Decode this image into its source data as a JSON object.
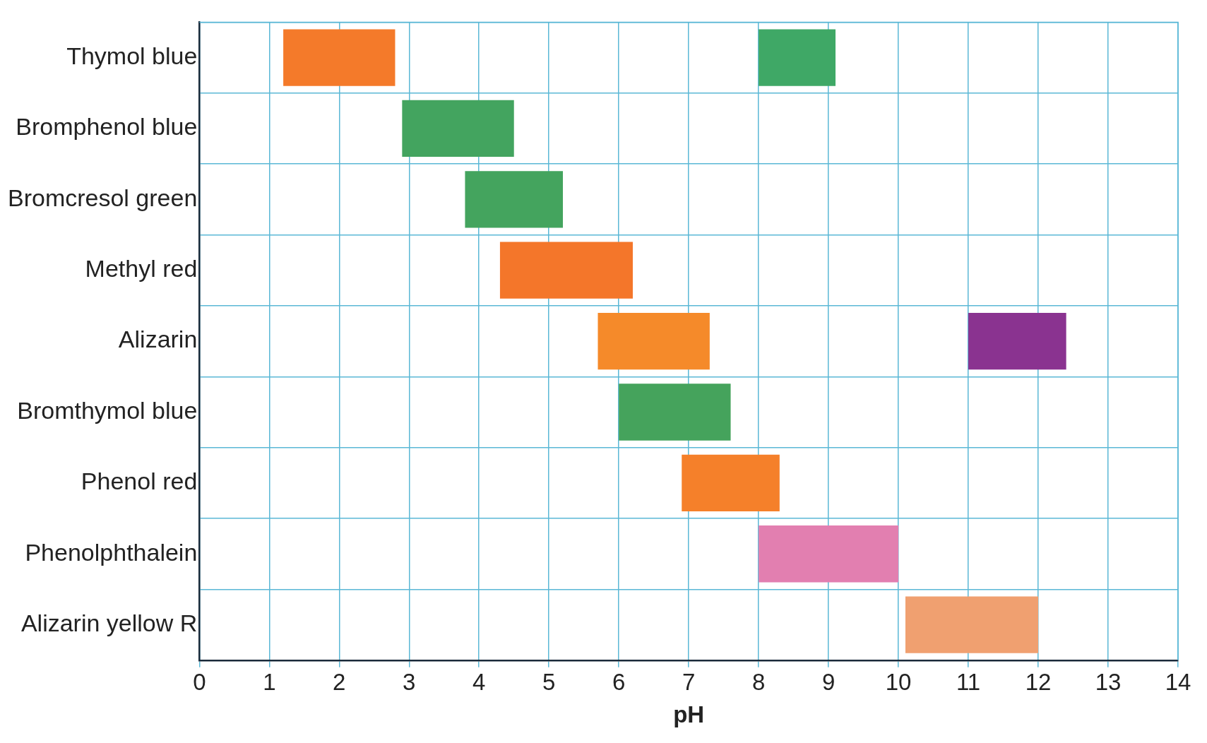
{
  "chart_data": {
    "type": "bar",
    "orientation": "horizontal",
    "xlabel": "pH",
    "categories": [
      "Thymol blue",
      "Bromphenol blue",
      "Bromcresol green",
      "Methyl red",
      "Alizarin",
      "Bromthymol blue",
      "Phenol red",
      "Phenolphthalein",
      "Alizarin yellow R"
    ],
    "series": [
      {
        "base": [
          1.2,
          2.9,
          3.8,
          4.3,
          5.7,
          6.0,
          6.9,
          8.0,
          10.1
        ],
        "values": [
          1.6,
          1.6,
          1.4,
          1.9,
          1.6,
          1.6,
          1.4,
          2.0,
          1.9
        ],
        "colors": [
          "#f47a2a",
          "#43a45f",
          "#44a45e",
          "#f4762a",
          "#f58a2a",
          "#45a35c",
          "#f5802a",
          "#e27fb0",
          "#f0a070"
        ]
      },
      {
        "base": [
          8.0,
          null,
          null,
          null,
          11.0,
          null,
          null,
          null,
          null
        ],
        "values": [
          1.1,
          null,
          null,
          null,
          1.4,
          null,
          null,
          null,
          null
        ],
        "colors": [
          "#3fa866",
          null,
          null,
          null,
          "#8a3390",
          null,
          null,
          null,
          null
        ]
      }
    ],
    "xlim": [
      0,
      14
    ],
    "xticks": [
      0,
      1,
      2,
      3,
      4,
      5,
      6,
      7,
      8,
      9,
      10,
      11,
      12,
      13,
      14
    ],
    "grid": true
  }
}
